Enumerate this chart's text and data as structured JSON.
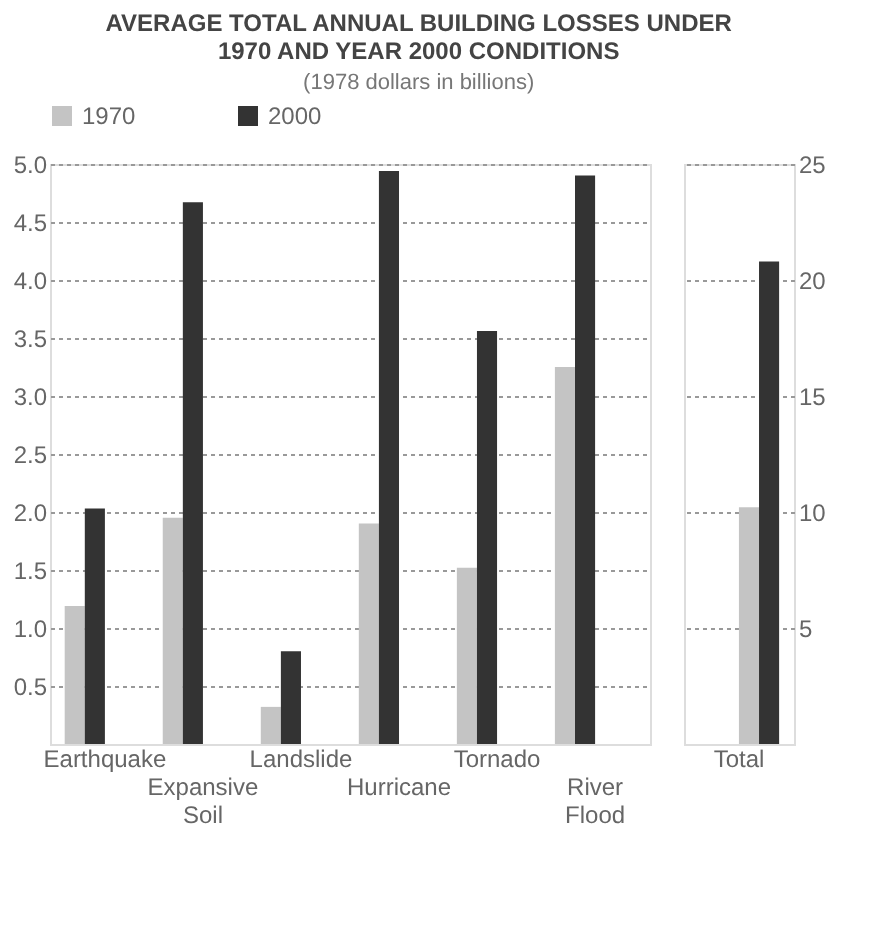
{
  "chart_data": [
    {
      "type": "bar",
      "title": "AVERAGE TOTAL ANNUAL BUILDING LOSSES UNDER 1970 AND YEAR 2000 CONDITIONS",
      "subtitle": "(1978 dollars in billions)",
      "categories": [
        "Earthquake",
        "Expansive Soil",
        "Landslide",
        "Hurricane",
        "Tornado",
        "River Flood"
      ],
      "series": [
        {
          "name": "1970",
          "color": "#c4c4c4",
          "values": [
            1.19,
            1.95,
            0.32,
            1.9,
            1.52,
            3.25
          ]
        },
        {
          "name": "2000",
          "color": "#333333",
          "values": [
            2.03,
            4.67,
            0.8,
            4.94,
            3.56,
            4.9
          ]
        }
      ],
      "ylim": [
        0,
        5
      ],
      "yticks": [
        {
          "value": 0.5,
          "label": "0.5"
        },
        {
          "value": 1,
          "label": "1.0"
        },
        {
          "value": 1.5,
          "label": "1.5"
        },
        {
          "value": 2,
          "label": "2.0"
        },
        {
          "value": 2.5,
          "label": "2.5"
        },
        {
          "value": 3,
          "label": "3.0"
        },
        {
          "value": 3.5,
          "label": "3.5"
        },
        {
          "value": 4,
          "label": "4.0"
        },
        {
          "value": 4.5,
          "label": "4.5"
        },
        {
          "value": 5,
          "label": "5.0"
        }
      ],
      "grid": "y",
      "legend": "top"
    },
    {
      "type": "bar",
      "categories": [
        "Total"
      ],
      "series": [
        {
          "color": "#c4c4c4",
          "values": [
            10.2
          ]
        },
        {
          "color": "#333333",
          "values": [
            20.8
          ]
        }
      ],
      "ylim": [
        0,
        25
      ],
      "yticks": [
        5,
        10,
        15,
        20,
        25
      ],
      "grid": "y"
    }
  ]
}
